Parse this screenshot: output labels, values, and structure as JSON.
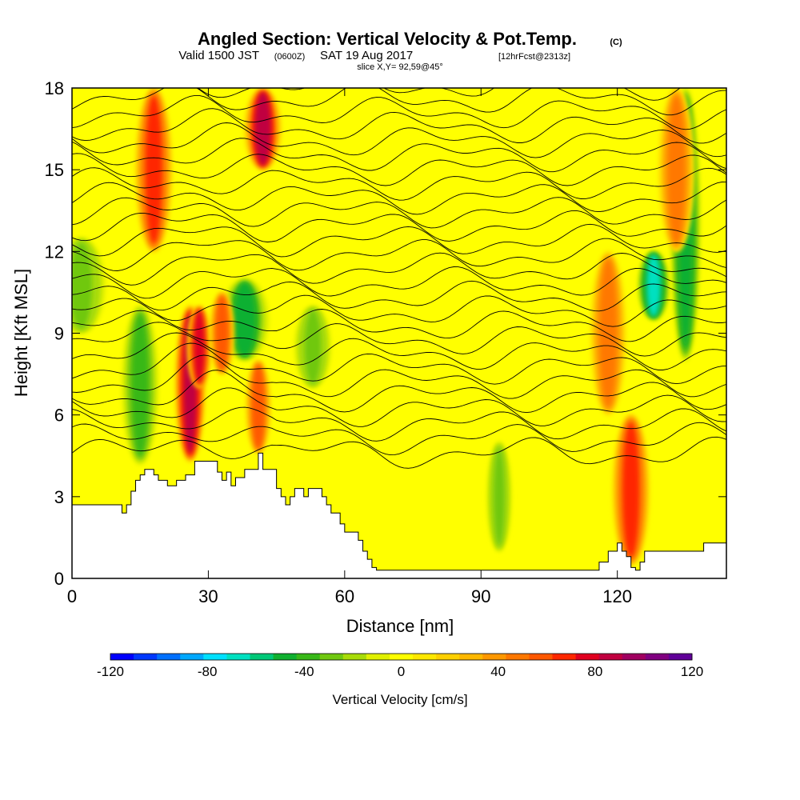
{
  "title": {
    "main": "Angled Section: Vertical Velocity & Pot.Temp.",
    "main_unit": "(C)",
    "valid_prefix": "Valid 1500 JST",
    "valid_utc": "(0600Z)",
    "valid_date": "SAT 19 Aug 2017",
    "forecast": "[12hrFcst@2313z]",
    "slice": "slice X,Y= 92,59@45°"
  },
  "chart_data": {
    "type": "heatmap",
    "title": "Angled Section: Vertical Velocity & Pot.Temp.",
    "xlabel": "Distance [nm]",
    "ylabel": "Height [Kft MSL]",
    "xlim": [
      0,
      144
    ],
    "ylim": [
      0,
      18
    ],
    "x_ticks": [
      0,
      30,
      60,
      90,
      120
    ],
    "x_tick_labels": [
      "0",
      "30",
      "60",
      "90",
      "120"
    ],
    "y_ticks": [
      0,
      3,
      6,
      9,
      12,
      15,
      18
    ],
    "y_tick_labels": [
      "0",
      "3",
      "6",
      "9",
      "12",
      "15",
      "18"
    ],
    "colorbar": {
      "title": "Vertical Velocity [cm/s]",
      "range": [
        -120,
        120
      ],
      "tick_values": [
        -120,
        -80,
        -40,
        0,
        40,
        80,
        120
      ],
      "tick_labels": [
        "-120",
        "-80",
        "-40",
        "0",
        "40",
        "80",
        "120"
      ],
      "colors": [
        "#0000ff",
        "#0038ff",
        "#0070ff",
        "#00a8ff",
        "#00e0ff",
        "#00e0c0",
        "#00c878",
        "#10b030",
        "#38b818",
        "#70c810",
        "#a8dc08",
        "#e0f000",
        "#ffff00",
        "#ffe800",
        "#ffd000",
        "#ffb800",
        "#ff9800",
        "#ff7800",
        "#ff5800",
        "#ff2800",
        "#e00020",
        "#c00040",
        "#a00060",
        "#800080",
        "#600098"
      ]
    },
    "terrain_profile": {
      "x_nm": [
        0,
        10,
        11,
        12,
        13,
        14,
        15,
        16,
        17,
        18,
        19,
        20,
        21,
        22,
        23,
        24,
        25,
        27,
        31,
        32,
        33,
        34,
        35,
        36,
        38,
        41,
        42,
        45,
        46,
        47,
        48,
        49,
        50,
        51,
        52,
        53,
        55,
        56,
        57,
        59,
        60,
        62,
        63,
        64,
        65,
        66,
        67,
        80,
        100,
        113,
        114,
        116,
        118,
        120,
        121,
        122,
        123,
        124,
        125,
        126,
        127,
        128,
        130,
        132,
        134,
        135,
        136,
        137,
        138,
        139,
        140,
        144
      ],
      "height_kft": [
        2.7,
        2.7,
        2.4,
        2.7,
        3.2,
        3.6,
        3.8,
        4.0,
        4.0,
        3.8,
        3.6,
        3.6,
        3.4,
        3.4,
        3.6,
        3.6,
        3.8,
        4.3,
        4.3,
        3.9,
        3.6,
        3.9,
        3.4,
        3.7,
        4.0,
        4.6,
        4.0,
        3.3,
        3.0,
        2.7,
        3.0,
        3.3,
        3.3,
        3.0,
        3.3,
        3.3,
        3.0,
        2.7,
        2.4,
        2.0,
        1.7,
        1.7,
        1.4,
        1.0,
        0.7,
        0.4,
        0.3,
        0.3,
        0.3,
        0.3,
        0.3,
        0.6,
        1.0,
        1.3,
        1.0,
        0.8,
        0.4,
        0.3,
        0.6,
        1.0,
        1.0,
        1.0,
        1.0,
        1.0,
        1.0,
        1.0,
        1.0,
        1.0,
        1.0,
        1.3,
        1.3,
        1.3
      ]
    },
    "updraft_features": [
      {
        "x": 18,
        "y0": 12,
        "y1": 18,
        "w": 3,
        "value": 70
      },
      {
        "x": 26,
        "y0": 4.3,
        "y1": 10,
        "w": 2.5,
        "value": 90
      },
      {
        "x": 28,
        "y0": 7,
        "y1": 10,
        "w": 2,
        "value": 80
      },
      {
        "x": 33,
        "y0": 7.5,
        "y1": 10.5,
        "w": 2,
        "value": 60
      },
      {
        "x": 42,
        "y0": 15,
        "y1": 18,
        "w": 3,
        "value": 85
      },
      {
        "x": 41,
        "y0": 4.6,
        "y1": 8,
        "w": 2,
        "value": 60
      },
      {
        "x": 123,
        "y0": 0.5,
        "y1": 6,
        "w": 3,
        "value": 70
      },
      {
        "x": 118,
        "y0": 6,
        "y1": 12,
        "w": 3,
        "value": 50
      },
      {
        "x": 133,
        "y0": 12,
        "y1": 18,
        "w": 3,
        "value": 50
      }
    ],
    "downdraft_features": [
      {
        "x": 2,
        "y0": 9,
        "y1": 12.5,
        "w": 4,
        "value": -30
      },
      {
        "x": 15,
        "y0": 4.2,
        "y1": 10,
        "w": 3,
        "value": -35
      },
      {
        "x": 38,
        "y0": 8,
        "y1": 11,
        "w": 4,
        "value": -45
      },
      {
        "x": 53,
        "y0": 7,
        "y1": 10,
        "w": 3,
        "value": -30
      },
      {
        "x": 128,
        "y0": 9.5,
        "y1": 12,
        "w": 2.5,
        "value": -70
      },
      {
        "x": 135,
        "y0": 8,
        "y1": 18,
        "w": 2.5,
        "value": -50
      },
      {
        "x": 94,
        "y0": 1,
        "y1": 5,
        "w": 2,
        "value": -30
      }
    ],
    "isentropes": {
      "description": "potential temperature contours, roughly horizontal",
      "count": 28
    }
  }
}
